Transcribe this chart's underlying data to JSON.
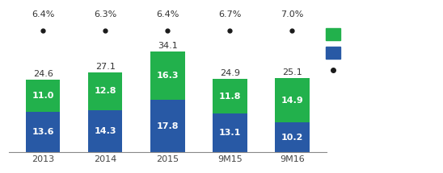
{
  "categories": [
    "2013",
    "2014",
    "2015",
    "9M15",
    "9M16"
  ],
  "green_values": [
    11.0,
    12.8,
    16.3,
    11.8,
    14.9
  ],
  "blue_values": [
    13.6,
    14.3,
    17.8,
    13.1,
    10.2
  ],
  "totals": [
    24.6,
    27.1,
    34.1,
    24.9,
    25.1
  ],
  "pct_labels": [
    "6.4%",
    "6.3%",
    "6.4%",
    "6.7%",
    "7.0%"
  ],
  "green_color": "#22b14c",
  "blue_color": "#2859a5",
  "dot_color": "#1a1a1a",
  "background_color": "#ffffff",
  "bar_width": 0.55,
  "bar_ylim": [
    0,
    38
  ],
  "font_size_bar": 8,
  "font_size_pct": 8,
  "font_size_total": 8,
  "font_size_tick": 8
}
